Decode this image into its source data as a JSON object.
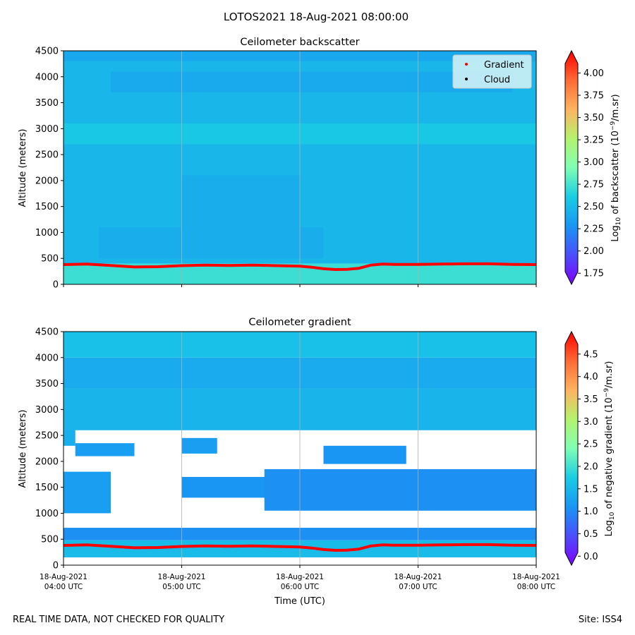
{
  "figure": {
    "title": "LOTOS2021 18-Aug-2021 08:00:00",
    "footer_left": "REAL TIME DATA, NOT CHECKED FOR QUALITY",
    "footer_right": "Site: ISS4"
  },
  "chart_data": [
    {
      "type": "heatmap",
      "title": "Ceilometer backscatter",
      "ylabel": "Altitude (meters)",
      "xlabel": "",
      "ylim": [
        0,
        4500
      ],
      "yticks": [
        0,
        500,
        1000,
        1500,
        2000,
        2500,
        3000,
        3500,
        4000,
        4500
      ],
      "xlim_hours": [
        4,
        8
      ],
      "x_tick_labels": [],
      "colorbar": {
        "label": "Log10 of backscatter (10^-9/m.sr)",
        "range": [
          1.625,
          4.25
        ],
        "ticks": [
          "1.75",
          "2.00",
          "2.25",
          "2.50",
          "2.75",
          "3.00",
          "3.25",
          "3.50",
          "3.75",
          "4.00"
        ],
        "tick_values": [
          1.75,
          2.0,
          2.25,
          2.5,
          2.75,
          3.0,
          3.25,
          3.5,
          3.75,
          4.0
        ]
      },
      "legend": {
        "location": "top-right",
        "entries": [
          {
            "label": "Gradient",
            "color": "#ff0000"
          },
          {
            "label": "Cloud",
            "color": "#000000"
          }
        ]
      },
      "gradient_line": {
        "color": "#ff0000",
        "x_hours": [
          4.0,
          4.2,
          4.4,
          4.6,
          4.8,
          5.0,
          5.2,
          5.4,
          5.6,
          5.8,
          6.0,
          6.1,
          6.2,
          6.3,
          6.4,
          6.5,
          6.6,
          6.7,
          6.8,
          7.0,
          7.2,
          7.4,
          7.6,
          7.8,
          8.0
        ],
        "altitude_m": [
          380,
          390,
          365,
          335,
          340,
          360,
          370,
          365,
          370,
          360,
          350,
          330,
          300,
          285,
          290,
          310,
          370,
          390,
          385,
          385,
          390,
          395,
          395,
          385,
          380
        ]
      },
      "fields": [
        {
          "t": [
            4.0,
            8.0
          ],
          "z": [
            0,
            400
          ],
          "value": 2.72
        },
        {
          "t": [
            4.0,
            8.0
          ],
          "z": [
            400,
            4500
          ],
          "value": 2.48
        },
        {
          "t": [
            4.0,
            8.0
          ],
          "z": [
            4300,
            4500
          ],
          "value": 2.38
        },
        {
          "t": [
            4.3,
            6.2
          ],
          "z": [
            500,
            1100
          ],
          "value": 2.42
        },
        {
          "t": [
            5.0,
            6.0
          ],
          "z": [
            1100,
            2100
          ],
          "value": 2.42
        },
        {
          "t": [
            4.0,
            8.0
          ],
          "z": [
            2700,
            3100
          ],
          "value": 2.58
        },
        {
          "t": [
            4.4,
            7.8
          ],
          "z": [
            3700,
            4100
          ],
          "value": 2.4
        }
      ]
    },
    {
      "type": "heatmap",
      "title": "Ceilometer gradient",
      "ylabel": "Altitude (meters)",
      "xlabel": "Time (UTC)",
      "ylim": [
        0,
        4500
      ],
      "yticks": [
        0,
        500,
        1000,
        1500,
        2000,
        2500,
        3000,
        3500,
        4000,
        4500
      ],
      "xlim_hours": [
        4,
        8
      ],
      "x_tick_hours": [
        4,
        5,
        6,
        7,
        8
      ],
      "x_tick_labels": [
        [
          "18-Aug-2021",
          "04:00 UTC"
        ],
        [
          "18-Aug-2021",
          "05:00 UTC"
        ],
        [
          "18-Aug-2021",
          "06:00 UTC"
        ],
        [
          "18-Aug-2021",
          "07:00 UTC"
        ],
        [
          "18-Aug-2021",
          "08:00 UTC"
        ]
      ],
      "colorbar": {
        "label": "Log10 of negative gradient (10^-9/m.sr)",
        "range": [
          -0.2,
          5.0
        ],
        "ticks": [
          "0.0",
          "0.5",
          "1.0",
          "1.5",
          "2.0",
          "2.5",
          "3.0",
          "3.5",
          "4.0",
          "4.5"
        ],
        "tick_values": [
          0.0,
          0.5,
          1.0,
          1.5,
          2.0,
          2.5,
          3.0,
          3.5,
          4.0,
          4.5
        ]
      },
      "gradient_line": {
        "color": "#ff0000",
        "x_hours": [
          4.0,
          4.2,
          4.4,
          4.6,
          4.8,
          5.0,
          5.2,
          5.4,
          5.6,
          5.8,
          6.0,
          6.1,
          6.2,
          6.3,
          6.4,
          6.5,
          6.6,
          6.7,
          6.8,
          7.0,
          7.2,
          7.4,
          7.6,
          7.8,
          8.0
        ],
        "altitude_m": [
          380,
          390,
          365,
          335,
          340,
          360,
          370,
          365,
          370,
          360,
          350,
          330,
          300,
          285,
          290,
          310,
          370,
          390,
          385,
          385,
          390,
          395,
          395,
          385,
          380
        ]
      },
      "regions": [
        {
          "t": [
            4.0,
            8.0
          ],
          "z": [
            150,
            480
          ],
          "value": 1.55
        },
        {
          "t": [
            4.0,
            8.0
          ],
          "z": [
            480,
            720
          ],
          "value": 1.05
        },
        {
          "t": [
            4.0,
            4.4
          ],
          "z": [
            1000,
            1800
          ],
          "value": 1.2
        },
        {
          "t": [
            5.0,
            5.9
          ],
          "z": [
            1300,
            1700
          ],
          "value": 1.1
        },
        {
          "t": [
            5.7,
            8.0
          ],
          "z": [
            1050,
            1850
          ],
          "value": 1.05
        },
        {
          "t": [
            6.2,
            6.9
          ],
          "z": [
            1950,
            2300
          ],
          "value": 1.1
        },
        {
          "t": [
            4.1,
            4.6
          ],
          "z": [
            2100,
            2350
          ],
          "value": 1.2
        },
        {
          "t": [
            5.0,
            5.3
          ],
          "z": [
            2150,
            2450
          ],
          "value": 1.2
        },
        {
          "t": [
            4.0,
            4.1
          ],
          "z": [
            2300,
            2650
          ],
          "value": 1.4
        },
        {
          "t": [
            4.0,
            8.0
          ],
          "z": [
            2600,
            3400
          ],
          "value": 1.45
        },
        {
          "t": [
            4.0,
            8.0
          ],
          "z": [
            3400,
            4000
          ],
          "value": 1.35
        },
        {
          "t": [
            4.0,
            8.0
          ],
          "z": [
            4000,
            4500
          ],
          "value": 1.6
        }
      ]
    }
  ]
}
